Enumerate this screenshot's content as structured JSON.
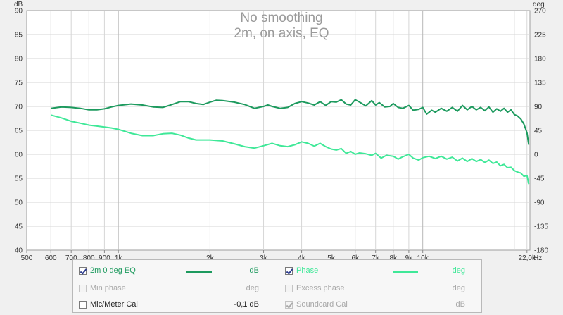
{
  "chart_data": {
    "type": "line",
    "title": "No smoothing",
    "subtitle": "2m, on axis, EQ",
    "xscale": "log",
    "xlim": [
      500,
      22500
    ],
    "ylim": [
      40,
      90
    ],
    "ylim_right": [
      -180,
      270
    ],
    "y_unit_label": "dB",
    "y_right_unit_label": "deg",
    "x_unit_label": "Hz",
    "grid": true,
    "x_ticks": [
      {
        "v": 500,
        "label": "500"
      },
      {
        "v": 600,
        "label": "600"
      },
      {
        "v": 700,
        "label": "700"
      },
      {
        "v": 800,
        "label": "800"
      },
      {
        "v": 900,
        "label": "900"
      },
      {
        "v": 1000,
        "label": "1k"
      },
      {
        "v": 2000,
        "label": "2k"
      },
      {
        "v": 3000,
        "label": "3k"
      },
      {
        "v": 4000,
        "label": "4k"
      },
      {
        "v": 5000,
        "label": "5k"
      },
      {
        "v": 6000,
        "label": "6k"
      },
      {
        "v": 7000,
        "label": "7k"
      },
      {
        "v": 8000,
        "label": "8k"
      },
      {
        "v": 9000,
        "label": "9k"
      },
      {
        "v": 10000,
        "label": "10k"
      },
      {
        "v": 22000,
        "label": "22,0k"
      }
    ],
    "x_minor_ticks": [
      20000
    ],
    "y_ticks_left": [
      "40",
      "45",
      "50",
      "55",
      "60",
      "65",
      "70",
      "75",
      "80",
      "85",
      "90"
    ],
    "y_ticks_right": [
      "-180",
      "-135",
      "-90",
      "-45",
      "0",
      "45",
      "90",
      "135",
      "180",
      "225",
      "270"
    ],
    "series": [
      {
        "name": "2m 0 deg EQ",
        "color": "#1d9a5e",
        "points": [
          [
            600,
            69.6
          ],
          [
            650,
            69.9
          ],
          [
            700,
            69.8
          ],
          [
            750,
            69.6
          ],
          [
            800,
            69.3
          ],
          [
            850,
            69.3
          ],
          [
            900,
            69.5
          ],
          [
            950,
            69.9
          ],
          [
            1000,
            70.2
          ],
          [
            1100,
            70.5
          ],
          [
            1200,
            70.3
          ],
          [
            1300,
            69.9
          ],
          [
            1400,
            69.8
          ],
          [
            1500,
            70.4
          ],
          [
            1600,
            71.0
          ],
          [
            1700,
            71.0
          ],
          [
            1800,
            70.6
          ],
          [
            1900,
            70.4
          ],
          [
            2000,
            70.9
          ],
          [
            2100,
            71.3
          ],
          [
            2200,
            71.2
          ],
          [
            2400,
            70.9
          ],
          [
            2600,
            70.4
          ],
          [
            2800,
            69.6
          ],
          [
            3000,
            70.0
          ],
          [
            3100,
            70.3
          ],
          [
            3200,
            70.0
          ],
          [
            3400,
            69.6
          ],
          [
            3600,
            69.8
          ],
          [
            3800,
            70.6
          ],
          [
            4000,
            71.0
          ],
          [
            4200,
            70.7
          ],
          [
            4400,
            70.3
          ],
          [
            4600,
            71.0
          ],
          [
            4800,
            70.2
          ],
          [
            5000,
            71.0
          ],
          [
            5200,
            70.9
          ],
          [
            5400,
            71.4
          ],
          [
            5600,
            70.5
          ],
          [
            5800,
            70.3
          ],
          [
            6000,
            71.4
          ],
          [
            6200,
            70.9
          ],
          [
            6500,
            70.1
          ],
          [
            6800,
            71.2
          ],
          [
            7000,
            70.3
          ],
          [
            7200,
            70.8
          ],
          [
            7500,
            69.9
          ],
          [
            7800,
            70.0
          ],
          [
            8000,
            70.6
          ],
          [
            8300,
            69.8
          ],
          [
            8600,
            69.6
          ],
          [
            9000,
            70.2
          ],
          [
            9300,
            69.2
          ],
          [
            9700,
            69.4
          ],
          [
            10000,
            69.8
          ],
          [
            10300,
            68.4
          ],
          [
            10700,
            69.2
          ],
          [
            11000,
            68.8
          ],
          [
            11500,
            69.6
          ],
          [
            12000,
            69.0
          ],
          [
            12500,
            69.8
          ],
          [
            13000,
            69.0
          ],
          [
            13500,
            70.2
          ],
          [
            14000,
            69.3
          ],
          [
            14500,
            70.0
          ],
          [
            15000,
            69.3
          ],
          [
            15500,
            69.8
          ],
          [
            16000,
            69.1
          ],
          [
            16500,
            69.9
          ],
          [
            17000,
            68.8
          ],
          [
            17500,
            69.5
          ],
          [
            18000,
            69.0
          ],
          [
            18500,
            69.6
          ],
          [
            19000,
            68.8
          ],
          [
            19500,
            69.3
          ],
          [
            20000,
            68.3
          ],
          [
            20500,
            68.0
          ],
          [
            21000,
            67.4
          ],
          [
            21500,
            66.3
          ],
          [
            22000,
            64.5
          ],
          [
            22300,
            62.0
          ]
        ]
      },
      {
        "name": "Phase",
        "color": "#3fe898",
        "points": [
          [
            600,
            68.2
          ],
          [
            650,
            67.6
          ],
          [
            700,
            66.9
          ],
          [
            750,
            66.5
          ],
          [
            800,
            66.1
          ],
          [
            850,
            65.9
          ],
          [
            900,
            65.7
          ],
          [
            950,
            65.5
          ],
          [
            1000,
            65.2
          ],
          [
            1100,
            64.4
          ],
          [
            1200,
            63.9
          ],
          [
            1300,
            63.9
          ],
          [
            1400,
            64.3
          ],
          [
            1500,
            64.4
          ],
          [
            1600,
            64.0
          ],
          [
            1700,
            63.4
          ],
          [
            1800,
            63.0
          ],
          [
            1900,
            63.0
          ],
          [
            2000,
            63.0
          ],
          [
            2200,
            62.8
          ],
          [
            2400,
            62.2
          ],
          [
            2600,
            61.6
          ],
          [
            2800,
            61.3
          ],
          [
            3000,
            61.8
          ],
          [
            3200,
            62.3
          ],
          [
            3400,
            61.8
          ],
          [
            3600,
            61.6
          ],
          [
            3800,
            62.0
          ],
          [
            4000,
            62.6
          ],
          [
            4200,
            62.3
          ],
          [
            4400,
            61.7
          ],
          [
            4600,
            62.3
          ],
          [
            4800,
            61.6
          ],
          [
            5000,
            61.1
          ],
          [
            5200,
            60.9
          ],
          [
            5400,
            61.2
          ],
          [
            5600,
            60.2
          ],
          [
            5800,
            60.6
          ],
          [
            6000,
            60.0
          ],
          [
            6200,
            60.3
          ],
          [
            6500,
            60.1
          ],
          [
            6800,
            59.8
          ],
          [
            7000,
            60.2
          ],
          [
            7300,
            59.2
          ],
          [
            7600,
            59.8
          ],
          [
            8000,
            59.6
          ],
          [
            8300,
            59.0
          ],
          [
            8600,
            59.5
          ],
          [
            9000,
            60.0
          ],
          [
            9300,
            59.2
          ],
          [
            9700,
            58.8
          ],
          [
            10000,
            59.3
          ],
          [
            10500,
            59.6
          ],
          [
            11000,
            59.1
          ],
          [
            11500,
            59.6
          ],
          [
            12000,
            59.0
          ],
          [
            12500,
            59.4
          ],
          [
            13000,
            58.6
          ],
          [
            13500,
            59.2
          ],
          [
            14000,
            58.5
          ],
          [
            14500,
            59.1
          ],
          [
            15000,
            58.5
          ],
          [
            15500,
            58.9
          ],
          [
            16000,
            58.3
          ],
          [
            16500,
            58.8
          ],
          [
            17000,
            58.1
          ],
          [
            17500,
            58.4
          ],
          [
            18000,
            57.6
          ],
          [
            18500,
            57.9
          ],
          [
            19000,
            57.2
          ],
          [
            19500,
            57.3
          ],
          [
            20000,
            56.6
          ],
          [
            20500,
            56.3
          ],
          [
            21000,
            56.1
          ],
          [
            21500,
            55.4
          ],
          [
            22000,
            55.6
          ],
          [
            22300,
            53.8
          ]
        ]
      }
    ]
  },
  "legend": [
    {
      "label": "2m 0 deg EQ",
      "unit": "dB",
      "checked": true,
      "enabled": true,
      "color": "#1d9a5e",
      "line_color": "#1d9a5e"
    },
    {
      "label": "Phase",
      "unit": "deg",
      "checked": true,
      "enabled": true,
      "color": "#3fe898",
      "line_color": "#3fe898"
    },
    {
      "label": "Min phase",
      "unit": "deg",
      "checked": false,
      "enabled": false,
      "color": "#a8a8a8",
      "line_color": ""
    },
    {
      "label": "Excess phase",
      "unit": "deg",
      "checked": false,
      "enabled": false,
      "color": "#a8a8a8",
      "line_color": ""
    },
    {
      "label": "Mic/Meter Cal",
      "unit": "-0,1 dB",
      "checked": false,
      "enabled": true,
      "color": "#222222",
      "line_color": ""
    },
    {
      "label": "Soundcard Cal",
      "unit": "dB",
      "checked": true,
      "enabled": false,
      "color": "#a8a8a8",
      "line_color": ""
    }
  ]
}
